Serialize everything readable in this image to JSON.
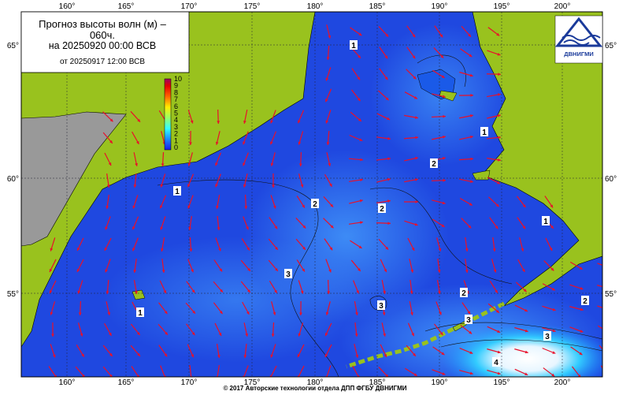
{
  "header": {
    "title": "Прогноз высоты волн (м) –\n060ч.",
    "forecast_time": "на 20250920 00:00 ВСВ",
    "base_time": "от 20250917 12:00 ВСВ"
  },
  "longitude_labels": [
    "160°",
    "165°",
    "170°",
    "175°",
    "180°",
    "185°",
    "190°",
    "195°",
    "200°"
  ],
  "latitude_labels": [
    "65°",
    "60°",
    "55°"
  ],
  "colorbar": {
    "labels": [
      "10",
      "9",
      "8",
      "7",
      "6",
      "5",
      "4",
      "3",
      "2",
      "1",
      "0"
    ]
  },
  "contour_labels": [
    "1",
    "1",
    "1",
    "1",
    "1",
    "2",
    "2",
    "2",
    "2",
    "2",
    "3",
    "3",
    "3",
    "3",
    "4"
  ],
  "logo": "ДВНИГМИ",
  "footer": "© 2017 Авторские технологии отдела ДПП ФГБУ ДВНИГМИ"
}
